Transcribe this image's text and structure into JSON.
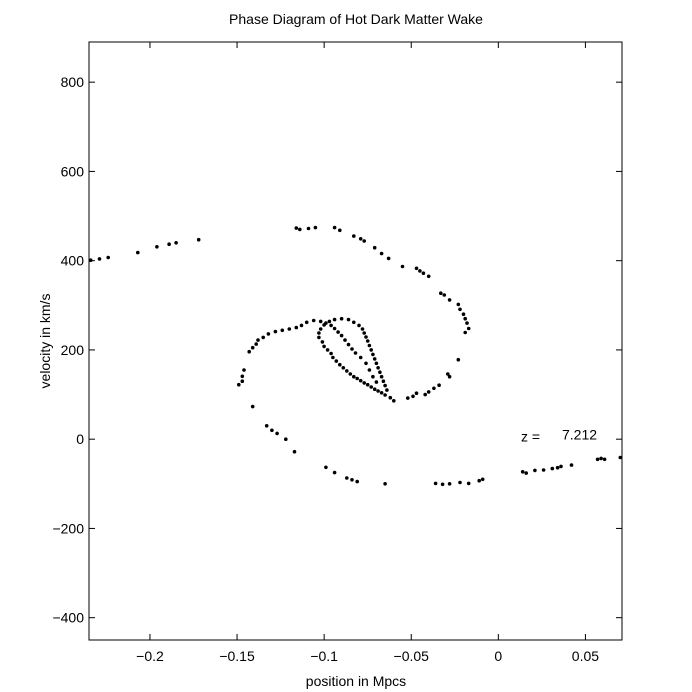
{
  "chart_data": {
    "type": "scatter",
    "title": "Phase Diagram of Hot Dark Matter Wake",
    "xlabel": "position in Mpcs",
    "ylabel": "velocity in km/s",
    "xlim": [
      -0.235,
      0.071
    ],
    "ylim": [
      -450,
      890
    ],
    "xticks": [
      -0.2,
      -0.15,
      -0.1,
      -0.05,
      0,
      0.05
    ],
    "xtick_labels": [
      "−0.2",
      "−0.15",
      "−0.1",
      "−0.05",
      "0",
      "0.05"
    ],
    "yticks": [
      -400,
      -200,
      0,
      200,
      400,
      600,
      800
    ],
    "ytick_labels": [
      "−400",
      "−200",
      "0",
      "200",
      "400",
      "600",
      "800"
    ],
    "grid": false,
    "annotation": {
      "label": "z =",
      "value": "7.212",
      "x": 0.013,
      "y": -5
    },
    "point_color": "#000000",
    "points": [
      [
        -0.234,
        401
      ],
      [
        -0.229,
        404
      ],
      [
        -0.224,
        407
      ],
      [
        -0.207,
        418
      ],
      [
        -0.196,
        431
      ],
      [
        -0.189,
        437
      ],
      [
        -0.185,
        440
      ],
      [
        -0.172,
        447
      ],
      [
        -0.116,
        473
      ],
      [
        -0.114,
        470
      ],
      [
        -0.109,
        472
      ],
      [
        -0.105,
        474
      ],
      [
        -0.094,
        474
      ],
      [
        -0.091,
        468
      ],
      [
        -0.083,
        455
      ],
      [
        -0.079,
        449
      ],
      [
        -0.077,
        444
      ],
      [
        -0.071,
        429
      ],
      [
        -0.067,
        416
      ],
      [
        -0.063,
        405
      ],
      [
        -0.055,
        387
      ],
      [
        -0.047,
        383
      ],
      [
        -0.045,
        377
      ],
      [
        -0.043,
        372
      ],
      [
        -0.04,
        365
      ],
      [
        -0.033,
        327
      ],
      [
        -0.031,
        323
      ],
      [
        -0.028,
        312
      ],
      [
        -0.023,
        302
      ],
      [
        -0.022,
        291
      ],
      [
        -0.02,
        280
      ],
      [
        -0.019,
        270
      ],
      [
        -0.018,
        260
      ],
      [
        -0.017,
        248
      ],
      [
        -0.019,
        239
      ],
      [
        -0.023,
        178
      ],
      [
        -0.029,
        146
      ],
      [
        -0.028,
        140
      ],
      [
        -0.034,
        121
      ],
      [
        -0.037,
        114
      ],
      [
        -0.04,
        106
      ],
      [
        -0.042,
        100
      ],
      [
        -0.047,
        103
      ],
      [
        -0.049,
        96
      ],
      [
        -0.052,
        92
      ],
      [
        -0.06,
        86
      ],
      [
        -0.062,
        93
      ],
      [
        -0.065,
        99
      ],
      [
        -0.067,
        104
      ],
      [
        -0.069,
        108
      ],
      [
        -0.071,
        112
      ],
      [
        -0.073,
        117
      ],
      [
        -0.075,
        122
      ],
      [
        -0.077,
        126
      ],
      [
        -0.079,
        131
      ],
      [
        -0.081,
        136
      ],
      [
        -0.083,
        140
      ],
      [
        -0.085,
        146
      ],
      [
        -0.087,
        153
      ],
      [
        -0.089,
        160
      ],
      [
        -0.091,
        167
      ],
      [
        -0.093,
        175
      ],
      [
        -0.095,
        183
      ],
      [
        -0.096,
        192
      ],
      [
        -0.098,
        200
      ],
      [
        -0.1,
        208
      ],
      [
        -0.101,
        218
      ],
      [
        -0.103,
        228
      ],
      [
        -0.103,
        238
      ],
      [
        -0.102,
        247
      ],
      [
        -0.1,
        256
      ],
      [
        -0.097,
        264
      ],
      [
        -0.094,
        268
      ],
      [
        -0.09,
        270
      ],
      [
        -0.086,
        268
      ],
      [
        -0.083,
        262
      ],
      [
        -0.08,
        255
      ],
      [
        -0.078,
        247
      ],
      [
        -0.077,
        238
      ],
      [
        -0.076,
        229
      ],
      [
        -0.075,
        220
      ],
      [
        -0.074,
        210
      ],
      [
        -0.073,
        200
      ],
      [
        -0.072,
        190
      ],
      [
        -0.071,
        180
      ],
      [
        -0.07,
        170
      ],
      [
        -0.069,
        160
      ],
      [
        -0.068,
        150
      ],
      [
        -0.067,
        140
      ],
      [
        -0.066,
        130
      ],
      [
        -0.065,
        120
      ],
      [
        -0.064,
        110
      ],
      [
        -0.07,
        128
      ],
      [
        -0.072,
        140
      ],
      [
        -0.074,
        155
      ],
      [
        -0.076,
        170
      ],
      [
        -0.079,
        183
      ],
      [
        -0.082,
        193
      ],
      [
        -0.084,
        202
      ],
      [
        -0.086,
        212
      ],
      [
        -0.088,
        222
      ],
      [
        -0.09,
        232
      ],
      [
        -0.092,
        240
      ],
      [
        -0.094,
        248
      ],
      [
        -0.096,
        255
      ],
      [
        -0.099,
        260
      ],
      [
        -0.102,
        264
      ],
      [
        -0.106,
        266
      ],
      [
        -0.11,
        262
      ],
      [
        -0.113,
        255
      ],
      [
        -0.116,
        250
      ],
      [
        -0.12,
        247
      ],
      [
        -0.124,
        244
      ],
      [
        -0.128,
        241
      ],
      [
        -0.132,
        236
      ],
      [
        -0.135,
        228
      ],
      [
        -0.138,
        222
      ],
      [
        -0.139,
        213
      ],
      [
        -0.141,
        205
      ],
      [
        -0.143,
        196
      ],
      [
        -0.146,
        155
      ],
      [
        -0.147,
        141
      ],
      [
        -0.147,
        130
      ],
      [
        -0.149,
        122
      ],
      [
        -0.141,
        73
      ],
      [
        -0.133,
        30
      ],
      [
        -0.13,
        20
      ],
      [
        -0.127,
        13
      ],
      [
        -0.122,
        0
      ],
      [
        -0.117,
        -28
      ],
      [
        -0.099,
        -63
      ],
      [
        -0.094,
        -75
      ],
      [
        -0.087,
        -87
      ],
      [
        -0.084,
        -91
      ],
      [
        -0.081,
        -95
      ],
      [
        -0.065,
        -100
      ],
      [
        -0.036,
        -99
      ],
      [
        -0.032,
        -101
      ],
      [
        -0.028,
        -100
      ],
      [
        -0.022,
        -97
      ],
      [
        -0.017,
        -99
      ],
      [
        -0.011,
        -93
      ],
      [
        -0.009,
        -90
      ],
      [
        0.014,
        -73
      ],
      [
        0.016,
        -76
      ],
      [
        0.021,
        -70
      ],
      [
        0.026,
        -69
      ],
      [
        0.031,
        -66
      ],
      [
        0.034,
        -64
      ],
      [
        0.036,
        -61
      ],
      [
        0.042,
        -58
      ],
      [
        0.057,
        -45
      ],
      [
        0.059,
        -43
      ],
      [
        0.061,
        -45
      ],
      [
        0.07,
        -41
      ]
    ]
  }
}
